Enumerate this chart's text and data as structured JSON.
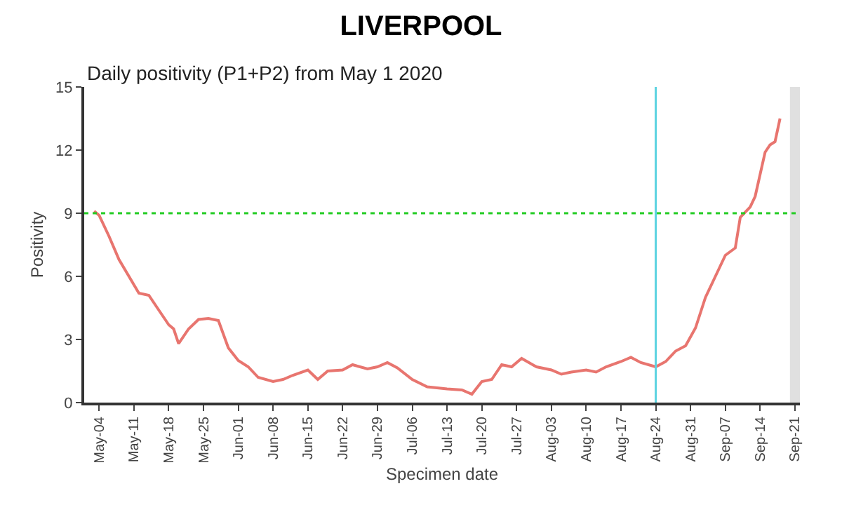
{
  "chart_data": {
    "type": "line",
    "title": "LIVERPOOL",
    "subtitle": "Daily positivity (P1+P2) from May 1 2020",
    "xlabel": "Specimen date",
    "ylabel": "Positivity",
    "x": [
      "2020-05-03",
      "2020-05-04",
      "2020-05-06",
      "2020-05-08",
      "2020-05-10",
      "2020-05-11",
      "2020-05-12",
      "2020-05-14",
      "2020-05-16",
      "2020-05-18",
      "2020-05-19",
      "2020-05-20",
      "2020-05-22",
      "2020-05-24",
      "2020-05-26",
      "2020-05-28",
      "2020-05-30",
      "2020-06-01",
      "2020-06-03",
      "2020-06-05",
      "2020-06-08",
      "2020-06-10",
      "2020-06-12",
      "2020-06-15",
      "2020-06-17",
      "2020-06-19",
      "2020-06-22",
      "2020-06-24",
      "2020-06-27",
      "2020-06-29",
      "2020-07-01",
      "2020-07-03",
      "2020-07-06",
      "2020-07-09",
      "2020-07-13",
      "2020-07-16",
      "2020-07-18",
      "2020-07-20",
      "2020-07-22",
      "2020-07-24",
      "2020-07-26",
      "2020-07-28",
      "2020-07-31",
      "2020-08-03",
      "2020-08-05",
      "2020-08-07",
      "2020-08-10",
      "2020-08-12",
      "2020-08-14",
      "2020-08-17",
      "2020-08-19",
      "2020-08-21",
      "2020-08-24",
      "2020-08-26",
      "2020-08-28",
      "2020-08-30",
      "2020-09-01",
      "2020-09-03",
      "2020-09-05",
      "2020-09-07",
      "2020-09-09",
      "2020-09-10",
      "2020-09-12",
      "2020-09-13",
      "2020-09-15",
      "2020-09-16",
      "2020-09-17",
      "2020-09-18"
    ],
    "series": [
      {
        "color": "#e8756f",
        "values": [
          9.1,
          8.9,
          7.9,
          6.8,
          6.0,
          5.6,
          5.2,
          5.1,
          4.4,
          3.7,
          3.5,
          2.8,
          3.5,
          3.95,
          4.0,
          3.9,
          2.6,
          2.0,
          1.7,
          1.2,
          1.0,
          1.1,
          1.3,
          1.55,
          1.1,
          1.5,
          1.55,
          1.8,
          1.6,
          1.7,
          1.9,
          1.65,
          1.1,
          0.75,
          0.65,
          0.6,
          0.4,
          1.0,
          1.1,
          1.8,
          1.7,
          2.1,
          1.7,
          1.55,
          1.35,
          1.45,
          1.55,
          1.45,
          1.7,
          1.95,
          2.15,
          1.9,
          1.7,
          1.95,
          2.45,
          2.7,
          3.55,
          5.0,
          6.0,
          7.0,
          7.35,
          8.8,
          9.3,
          9.8,
          11.9,
          12.25,
          12.4,
          13.5
        ]
      }
    ],
    "xlim": [
      "2020-05-01",
      "2020-09-22"
    ],
    "xticks": [
      {
        "value": "2020-05-04",
        "label": "May-04"
      },
      {
        "value": "2020-05-11",
        "label": "May-11"
      },
      {
        "value": "2020-05-18",
        "label": "May-18"
      },
      {
        "value": "2020-05-25",
        "label": "May-25"
      },
      {
        "value": "2020-06-01",
        "label": "Jun-01"
      },
      {
        "value": "2020-06-08",
        "label": "Jun-08"
      },
      {
        "value": "2020-06-15",
        "label": "Jun-15"
      },
      {
        "value": "2020-06-22",
        "label": "Jun-22"
      },
      {
        "value": "2020-06-29",
        "label": "Jun-29"
      },
      {
        "value": "2020-07-06",
        "label": "Jul-06"
      },
      {
        "value": "2020-07-13",
        "label": "Jul-13"
      },
      {
        "value": "2020-07-20",
        "label": "Jul-20"
      },
      {
        "value": "2020-07-27",
        "label": "Jul-27"
      },
      {
        "value": "2020-08-03",
        "label": "Aug-03"
      },
      {
        "value": "2020-08-10",
        "label": "Aug-10"
      },
      {
        "value": "2020-08-17",
        "label": "Aug-17"
      },
      {
        "value": "2020-08-24",
        "label": "Aug-24"
      },
      {
        "value": "2020-08-31",
        "label": "Aug-31"
      },
      {
        "value": "2020-09-07",
        "label": "Sep-07"
      },
      {
        "value": "2020-09-14",
        "label": "Sep-14"
      },
      {
        "value": "2020-09-21",
        "label": "Sep-21"
      }
    ],
    "ylim": [
      0,
      15
    ],
    "yticks": [
      0,
      3,
      6,
      9,
      12,
      15
    ],
    "grid": false,
    "ref_lines": [
      {
        "axis": "y",
        "value": 9,
        "color": "#22cc22",
        "line_style": "dotted"
      },
      {
        "axis": "x",
        "value": "2020-08-24",
        "color": "#5bd3e0",
        "line_style": "solid"
      }
    ],
    "bands": [
      {
        "axis": "x",
        "from": "2020-09-20",
        "to": "2020-09-22",
        "color": "#e0e0e0"
      }
    ]
  }
}
